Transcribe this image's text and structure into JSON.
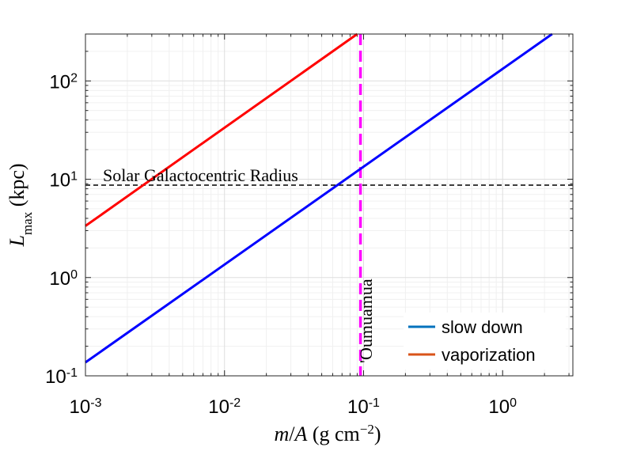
{
  "chart_data": {
    "type": "line",
    "xscale": "log",
    "yscale": "log",
    "xlim": [
      0.001,
      3.2
    ],
    "ylim": [
      0.1,
      300
    ],
    "grid": true,
    "xlabel_parts": {
      "pre": "m/A (g cm",
      "sup": "−2",
      "post": ")"
    },
    "ylabel_parts": {
      "pre": "L",
      "sub": "max",
      "post": " (kpc)"
    },
    "x_ticks": [
      {
        "value": 0.001,
        "base": "10",
        "exp": "-3"
      },
      {
        "value": 0.01,
        "base": "10",
        "exp": "-2"
      },
      {
        "value": 0.1,
        "base": "10",
        "exp": "-1"
      },
      {
        "value": 1,
        "base": "10",
        "exp": "0"
      }
    ],
    "y_ticks": [
      {
        "value": 0.1,
        "base": "10",
        "exp": "-1"
      },
      {
        "value": 1,
        "base": "10",
        "exp": "0"
      },
      {
        "value": 10,
        "base": "10",
        "exp": "1"
      },
      {
        "value": 100,
        "base": "10",
        "exp": "2"
      }
    ],
    "series": [
      {
        "name": "slow down",
        "legend_color": "#0072BD",
        "line_color": "#0000FF",
        "x": [
          0.001,
          2.27
        ],
        "y": [
          0.137,
          300
        ]
      },
      {
        "name": "vaporization",
        "legend_color": "#D95319",
        "line_color": "#FF0000",
        "x": [
          0.001,
          0.09
        ],
        "y": [
          3.35,
          300
        ]
      }
    ],
    "reference_lines": [
      {
        "orientation": "horizontal",
        "value": 8.7,
        "label": "Solar Galactocentric Radius",
        "color": "#000000",
        "style": "dashed"
      },
      {
        "orientation": "vertical",
        "value": 0.095,
        "label": "'Oumuamua",
        "color": "#FF00FF",
        "style": "dashed"
      }
    ],
    "legend_position": "bottom-right"
  }
}
